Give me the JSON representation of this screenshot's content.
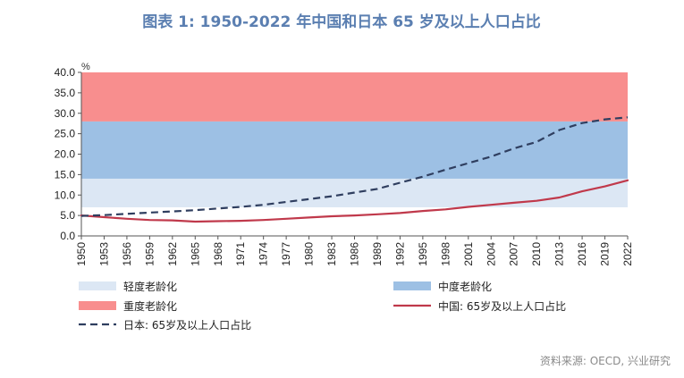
{
  "title": "图表 1:  1950-2022 年中国和日本 65 岁及以上人口占比",
  "source": "资料来源: OECD, 兴业研究",
  "colors": {
    "title": "#5b7fb1",
    "light_band": "#dce7f4",
    "medium_band": "#9dc0e4",
    "severe_band": "#f88e8e",
    "china_line": "#c0394b",
    "japan_line": "#2f3e5f"
  },
  "chart_data": {
    "type": "line",
    "unit_label": "%",
    "ylim": [
      0,
      40
    ],
    "yticks": [
      "0.0",
      "5.0",
      "10.0",
      "15.0",
      "20.0",
      "25.0",
      "30.0",
      "35.0",
      "40.0"
    ],
    "xlim": [
      1950,
      2022
    ],
    "xticks": [
      "1950",
      "1953",
      "1956",
      "1959",
      "1962",
      "1965",
      "1968",
      "1971",
      "1974",
      "1977",
      "1980",
      "1983",
      "1986",
      "1989",
      "1992",
      "1995",
      "1998",
      "2001",
      "2004",
      "2007",
      "2010",
      "2013",
      "2016",
      "2019",
      "2022"
    ],
    "bands": [
      {
        "name": "轻度老龄化",
        "from": 7,
        "to": 14
      },
      {
        "name": "中度老龄化",
        "from": 14,
        "to": 28
      },
      {
        "name": "重度老龄化",
        "from": 28,
        "to": 40
      }
    ],
    "x": [
      1950,
      1953,
      1956,
      1959,
      1962,
      1965,
      1968,
      1971,
      1974,
      1977,
      1980,
      1983,
      1986,
      1989,
      1992,
      1995,
      1998,
      2001,
      2004,
      2007,
      2010,
      2013,
      2016,
      2019,
      2022
    ],
    "series": [
      {
        "name": "中国: 65岁及以上人口占比",
        "style": "solid",
        "values": [
          5.0,
          4.6,
          4.2,
          3.9,
          3.8,
          3.5,
          3.6,
          3.7,
          3.9,
          4.2,
          4.5,
          4.8,
          5.0,
          5.3,
          5.6,
          6.1,
          6.5,
          7.1,
          7.6,
          8.1,
          8.6,
          9.4,
          10.9,
          12.1,
          13.6
        ]
      },
      {
        "name": "日本: 65岁及以上人口占比",
        "style": "dashed",
        "values": [
          4.9,
          5.1,
          5.4,
          5.7,
          6.0,
          6.3,
          6.7,
          7.1,
          7.6,
          8.3,
          9.0,
          9.7,
          10.6,
          11.5,
          13.0,
          14.5,
          16.2,
          17.8,
          19.4,
          21.4,
          23.0,
          25.9,
          27.6,
          28.5,
          29.0
        ]
      }
    ]
  }
}
